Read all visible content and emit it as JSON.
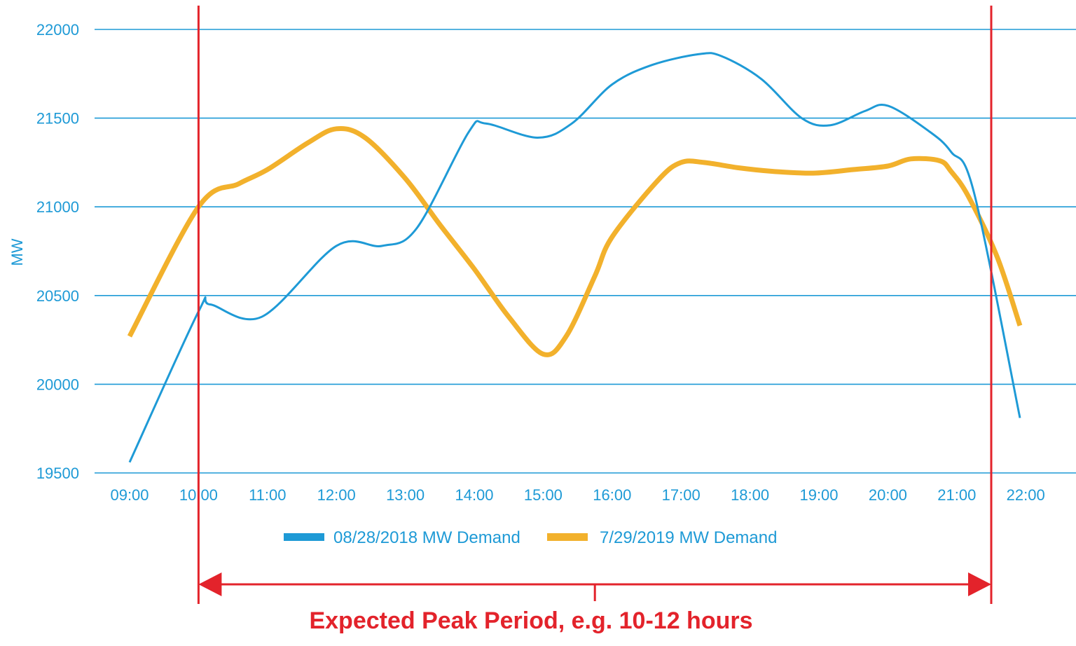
{
  "chart_data": {
    "type": "line",
    "title": "",
    "ylabel": "MW",
    "xlabel": "",
    "ylim": [
      19500,
      22000
    ],
    "y_ticks": [
      "19500",
      "20000",
      "20500",
      "21000",
      "21500",
      "22000"
    ],
    "categories": [
      "09:00",
      "10:00",
      "11:00",
      "12:00",
      "13:00",
      "14:00",
      "15:00",
      "16:00",
      "17:00",
      "18:00",
      "19:00",
      "20:00",
      "21:00",
      "22:00"
    ],
    "grid": "horizontal",
    "legend_position": "bottom",
    "series": [
      {
        "name": "08/28/2018 MW Demand",
        "color": "#1e9ad6",
        "x": [
          "09:00",
          "10:00",
          "10:10",
          "10:55",
          "12:00",
          "12:40",
          "13:10",
          "13:55",
          "14:10",
          "14:55",
          "15:25",
          "16:00",
          "16:35",
          "17:15",
          "17:35",
          "18:10",
          "18:45",
          "19:10",
          "19:40",
          "20:00",
          "20:35",
          "20:55",
          "21:15",
          "21:55"
        ],
        "values": [
          19560,
          20410,
          20450,
          20380,
          20780,
          20780,
          20880,
          21420,
          21470,
          21390,
          21470,
          21690,
          21800,
          21860,
          21850,
          21720,
          21500,
          21460,
          21540,
          21570,
          21430,
          21310,
          21080,
          19810
        ]
      },
      {
        "name": "7/29/2019 MW Demand",
        "color": "#f2b12c",
        "x": [
          "09:00",
          "10:00",
          "10:35",
          "11:00",
          "11:35",
          "12:00",
          "12:25",
          "13:00",
          "13:30",
          "14:00",
          "14:30",
          "15:00",
          "15:20",
          "15:45",
          "16:00",
          "16:40",
          "17:00",
          "17:20",
          "17:50",
          "18:20",
          "18:55",
          "19:30",
          "20:00",
          "20:20",
          "20:45",
          "20:55",
          "21:10",
          "21:35",
          "21:55"
        ],
        "values": [
          20270,
          21000,
          21130,
          21210,
          21360,
          21440,
          21390,
          21160,
          20900,
          20650,
          20380,
          20170,
          20270,
          20610,
          20830,
          21150,
          21250,
          21250,
          21220,
          21200,
          21190,
          21210,
          21230,
          21270,
          21260,
          21200,
          21060,
          20720,
          20330
        ]
      }
    ],
    "peak_period": {
      "start": "10:00",
      "end": "21:30",
      "label": "Expected Peak Period, e.g. 10-12 hours",
      "color": "#e3232b"
    }
  }
}
